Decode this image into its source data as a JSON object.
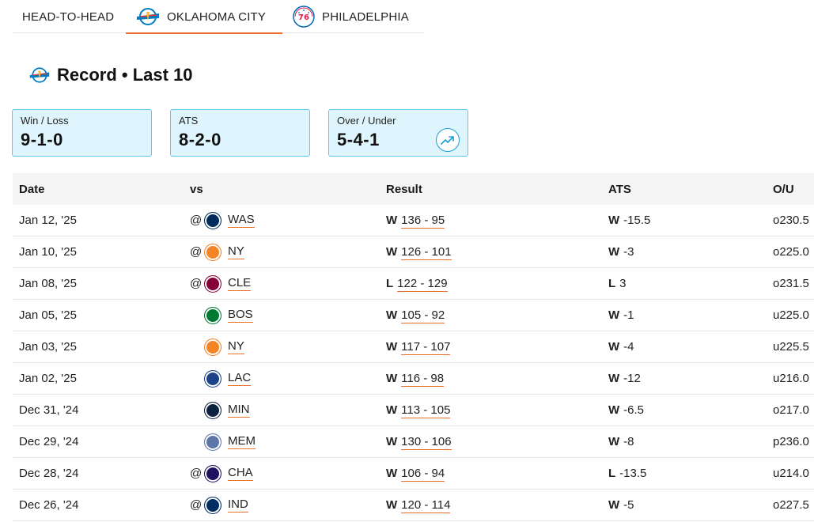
{
  "tabs": [
    {
      "label": "HEAD-TO-HEAD",
      "icon": "none",
      "active": false
    },
    {
      "label": "OKLAHOMA CITY",
      "icon": "thunder-logo-icon",
      "active": true
    },
    {
      "label": "PHILADELPHIA",
      "icon": "sixers-logo-icon",
      "active": false
    }
  ],
  "section": {
    "title": "Record • Last 10",
    "icon": "thunder-logo-icon"
  },
  "cards": [
    {
      "label": "Win / Loss",
      "value": "9-1-0"
    },
    {
      "label": "ATS",
      "value": "8-2-0"
    },
    {
      "label": "Over / Under",
      "value": "5-4-1",
      "icon": "trend-up-icon"
    }
  ],
  "table": {
    "headers": {
      "date": "Date",
      "vs": "vs",
      "result": "Result",
      "ats": "ATS",
      "ou": "O/U"
    },
    "rows": [
      {
        "date": "Jan 12, '25",
        "at": "@",
        "team": "WAS",
        "wl": "W",
        "score": "136 - 95",
        "ats_wl": "W",
        "ats_line": "-15.5",
        "ou": "o230.5",
        "color": "#002b5c"
      },
      {
        "date": "Jan 10, '25",
        "at": "@",
        "team": "NY",
        "wl": "W",
        "score": "126 - 101",
        "ats_wl": "W",
        "ats_line": "-3",
        "ou": "o225.0",
        "color": "#f58426"
      },
      {
        "date": "Jan 08, '25",
        "at": "@",
        "team": "CLE",
        "wl": "L",
        "score": "122 - 129",
        "ats_wl": "L",
        "ats_line": "3",
        "ou": "o231.5",
        "color": "#860038"
      },
      {
        "date": "Jan 05, '25",
        "at": "",
        "team": "BOS",
        "wl": "W",
        "score": "105 - 92",
        "ats_wl": "W",
        "ats_line": "-1",
        "ou": "u225.0",
        "color": "#007a33"
      },
      {
        "date": "Jan 03, '25",
        "at": "",
        "team": "NY",
        "wl": "W",
        "score": "117 - 107",
        "ats_wl": "W",
        "ats_line": "-4",
        "ou": "u225.5",
        "color": "#f58426"
      },
      {
        "date": "Jan 02, '25",
        "at": "",
        "team": "LAC",
        "wl": "W",
        "score": "116 - 98",
        "ats_wl": "W",
        "ats_line": "-12",
        "ou": "u216.0",
        "color": "#1d428a"
      },
      {
        "date": "Dec 31, '24",
        "at": "",
        "team": "MIN",
        "wl": "W",
        "score": "113 - 105",
        "ats_wl": "W",
        "ats_line": "-6.5",
        "ou": "o217.0",
        "color": "#0c2340"
      },
      {
        "date": "Dec 29, '24",
        "at": "",
        "team": "MEM",
        "wl": "W",
        "score": "130 - 106",
        "ats_wl": "W",
        "ats_line": "-8",
        "ou": "p236.0",
        "color": "#5d76a9"
      },
      {
        "date": "Dec 28, '24",
        "at": "@",
        "team": "CHA",
        "wl": "W",
        "score": "106 - 94",
        "ats_wl": "L",
        "ats_line": "-13.5",
        "ou": "u214.0",
        "color": "#1d1160"
      },
      {
        "date": "Dec 26, '24",
        "at": "@",
        "team": "IND",
        "wl": "W",
        "score": "120 - 114",
        "ats_wl": "W",
        "ats_line": "-5",
        "ou": "o227.5",
        "color": "#002d62"
      }
    ]
  },
  "colors": {
    "accent": "#e8702a",
    "card_bg": "#dff5fd",
    "card_border": "#5ec8ec",
    "header_bg": "#f5f5f5"
  }
}
